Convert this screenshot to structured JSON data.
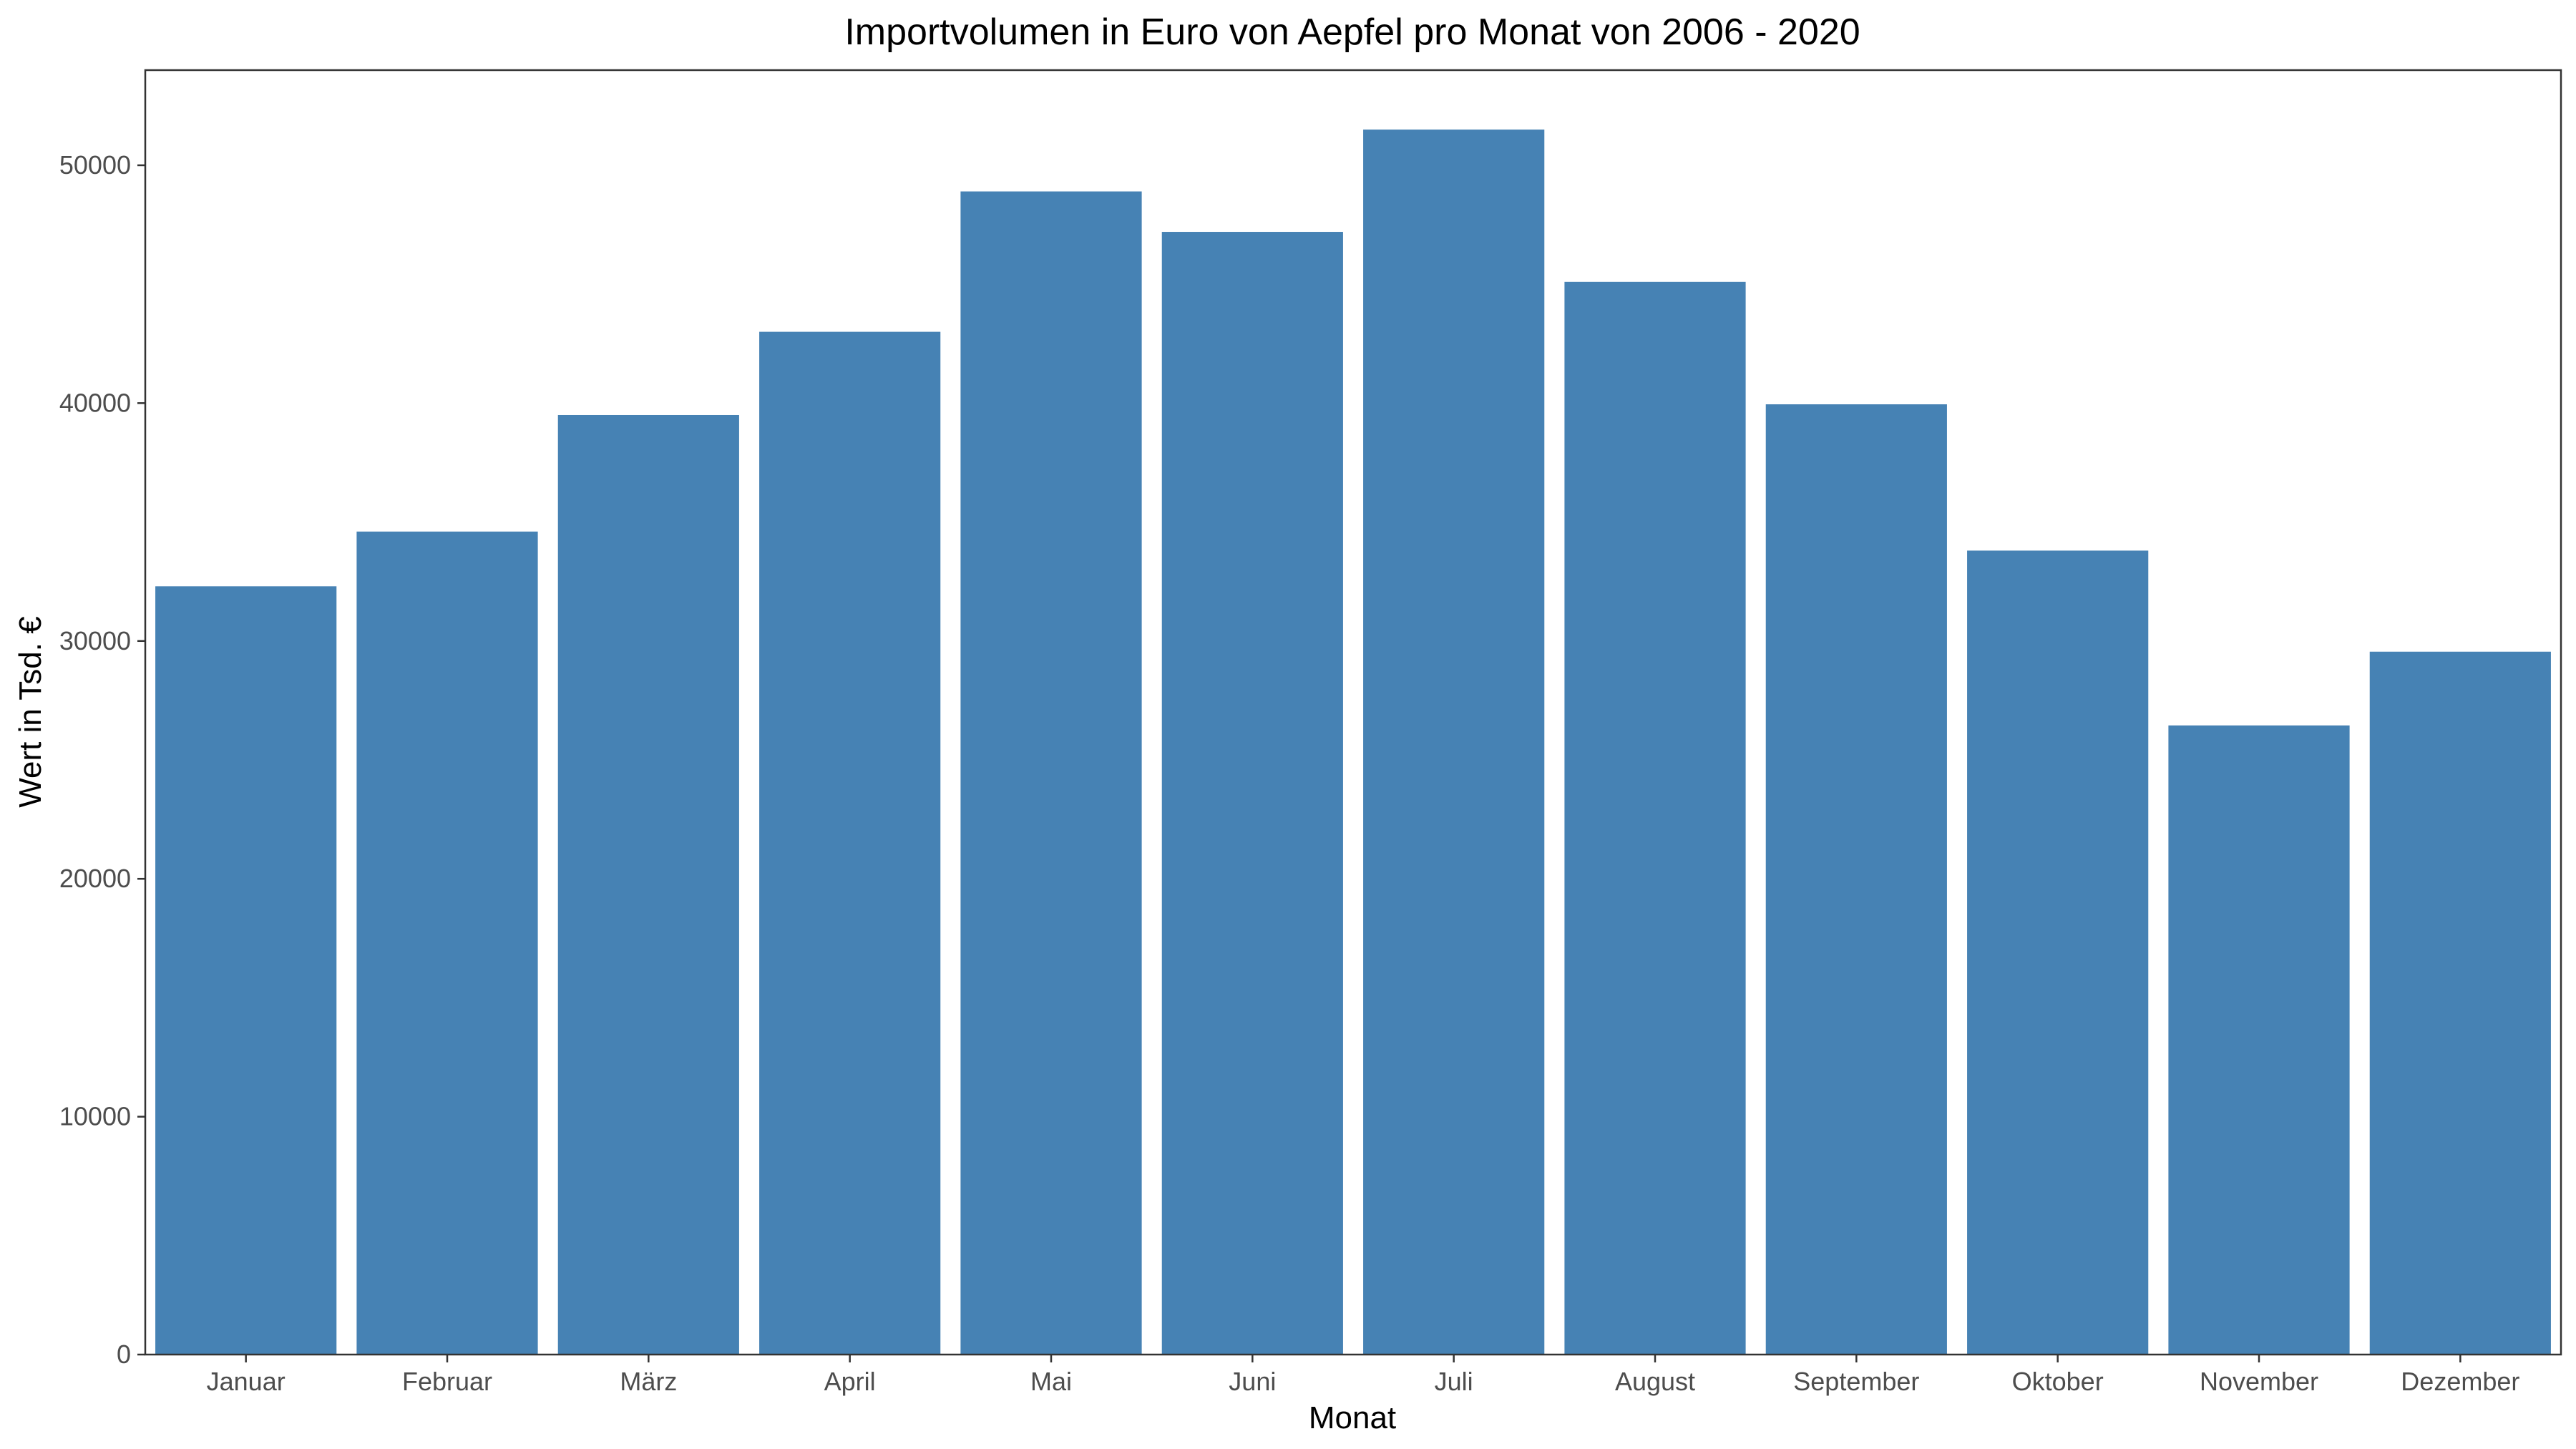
{
  "chart_data": {
    "type": "bar",
    "title": "Importvolumen in Euro von Aepfel pro Monat von 2006 - 2020",
    "xlabel": "Monat",
    "ylabel": "Wert in Tsd. €",
    "categories": [
      "Januar",
      "Februar",
      "März",
      "April",
      "Mai",
      "Juni",
      "Juli",
      "August",
      "September",
      "Oktober",
      "November",
      "Dezember"
    ],
    "values": [
      32300,
      34600,
      39500,
      43000,
      48900,
      47200,
      51500,
      45100,
      39950,
      33800,
      26450,
      29550
    ],
    "ylim": [
      0,
      54000
    ],
    "yticks": [
      0,
      10000,
      20000,
      30000,
      40000,
      50000
    ],
    "grid": false,
    "legend": "none",
    "bar_color": "#4682B4",
    "axis_color": "#333333",
    "tick_label_color": "#4d4d4d"
  }
}
